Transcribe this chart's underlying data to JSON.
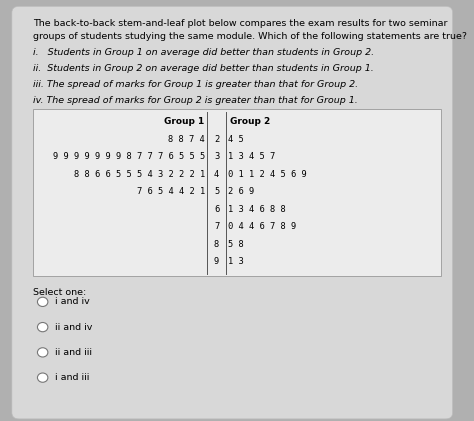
{
  "background_color": "#b0b0b0",
  "card_color": "#d8d8d8",
  "table_bg": "#f0f0f0",
  "title_text1": "The back-to-back stem-and-leaf plot below compares the exam results for two seminar",
  "title_text2": "groups of students studying the same module. Which of the following statements are true?",
  "statements": [
    "i.   Students in Group 1 on average did better than students in Group 2.",
    "ii.  Students in Group 2 on average did better than students in Group 1.",
    "iii. The spread of marks for Group 1 is greater than that for Group 2.",
    "iv. The spread of marks for Group 2 is greater than that for Group 1."
  ],
  "group1_header": "Group 1",
  "group2_header": "Group 2",
  "stems": [
    "2",
    "3",
    "4",
    "5",
    "6",
    "7",
    "8",
    "9"
  ],
  "group1_leaves": [
    "8 8 7 4",
    "9 9 9 9 9 9 9 8 7 7 7 6 5 5 5",
    "8 8 6 6 5 5 5 4 3 2 2 2 1",
    "7 6 5 4 4 2 1",
    "",
    "",
    "",
    ""
  ],
  "group2_leaves": [
    "4 5",
    "1 3 4 5 7",
    "0 1 1 2 4 5 6 9",
    "2 6 9",
    "1 3 4 6 8 8",
    "0 4 4 6 7 8 9",
    "5 8",
    "1 3"
  ],
  "select_text": "Select one:",
  "options": [
    "i and iv",
    "ii and iv",
    "ii and iii",
    "i and iii"
  ],
  "title_fontsize": 6.8,
  "statement_fontsize": 6.8,
  "table_header_fontsize": 6.5,
  "table_fontsize": 6.3,
  "option_fontsize": 6.8
}
